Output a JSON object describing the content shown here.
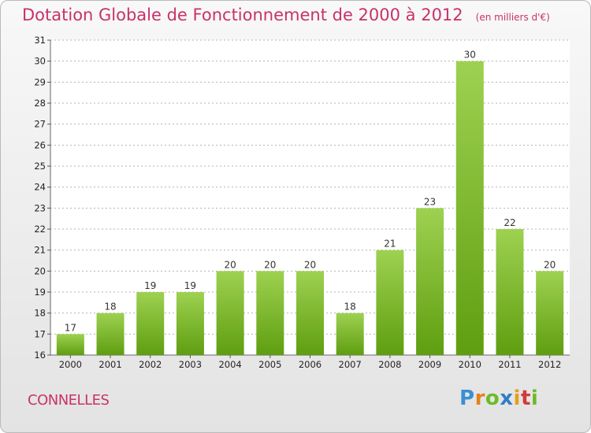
{
  "header": {
    "title": "Dotation Globale de Fonctionnement de 2000 à 2012",
    "unit": "(en milliers d'€)"
  },
  "footer": {
    "commune": "CONNELLES",
    "brand": "Proxiti"
  },
  "colors": {
    "title": "#c8326a",
    "bar_top": "#9ed151",
    "bar_bottom": "#5f9e10",
    "grid": "#b4b4b4"
  },
  "chart_data": {
    "type": "bar",
    "title": "Dotation Globale de Fonctionnement de 2000 à 2012",
    "subtitle": "(en milliers d'€)",
    "xlabel": "",
    "ylabel": "",
    "categories": [
      "2000",
      "2001",
      "2002",
      "2003",
      "2004",
      "2005",
      "2006",
      "2007",
      "2008",
      "2009",
      "2010",
      "2011",
      "2012"
    ],
    "values": [
      17,
      18,
      19,
      19,
      20,
      20,
      20,
      18,
      21,
      23,
      30,
      22,
      20
    ],
    "ylim": [
      16,
      31
    ],
    "yticks": [
      16,
      17,
      18,
      19,
      20,
      21,
      22,
      23,
      24,
      25,
      26,
      27,
      28,
      29,
      30,
      31
    ],
    "grid": true,
    "grid_style": "dashed horizontal",
    "data_labels": true
  }
}
